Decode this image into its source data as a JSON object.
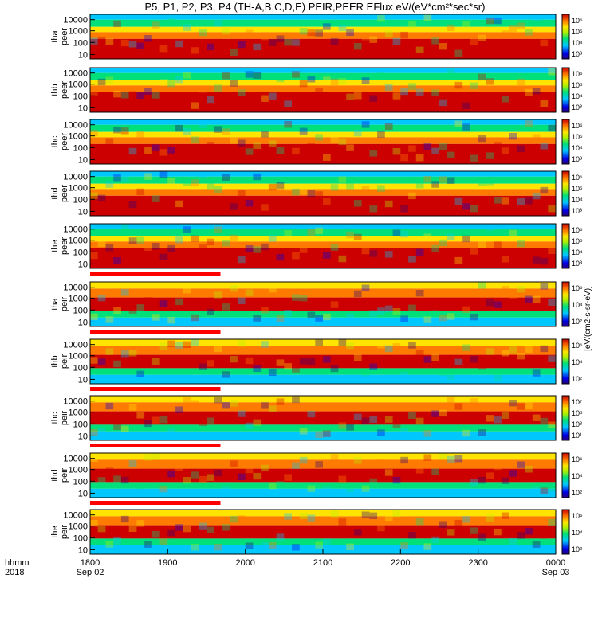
{
  "title": "P5, P1, P2, P3, P4 (TH-A,B,C,D,E) PEIR,PEER EFlux eV/(eV*cm²*sec*sr)",
  "chart_data": {
    "type": "heatmap",
    "x_ticks": [
      {
        "label": "1800",
        "sub": "Sep 02"
      },
      {
        "label": "1900",
        "sub": ""
      },
      {
        "label": "2000",
        "sub": ""
      },
      {
        "label": "2100",
        "sub": ""
      },
      {
        "label": "2200",
        "sub": ""
      },
      {
        "label": "2300",
        "sub": ""
      },
      {
        "label": "0000",
        "sub": "Sep 03"
      }
    ],
    "x_label_top": "hhmm",
    "x_label_bottom": "2018",
    "y_ticks": [
      "10000",
      "1000",
      "100",
      "10"
    ],
    "colorbar_label": "[eV/(cm2-s-sr-eV)]",
    "panels": [
      {
        "line1": "tha",
        "line2": "peer",
        "cbar": [
          "10⁶",
          "10⁵",
          "10⁴",
          "10³"
        ],
        "strip": false
      },
      {
        "line1": "thb",
        "line2": "peer",
        "cbar": [
          "10⁶",
          "10⁵",
          "10⁴",
          "10³"
        ],
        "strip": false
      },
      {
        "line1": "thc",
        "line2": "peer",
        "cbar": [
          "10⁶",
          "10⁵",
          "10⁴",
          "10³"
        ],
        "strip": false
      },
      {
        "line1": "thd",
        "line2": "peer",
        "cbar": [
          "10⁶",
          "10⁵",
          "10⁴",
          "10³"
        ],
        "strip": false
      },
      {
        "line1": "the",
        "line2": "peer",
        "cbar": [
          "10⁶",
          "10⁵",
          "10⁴",
          "10³"
        ],
        "strip": true
      },
      {
        "line1": "tha",
        "line2": "peir",
        "cbar": [
          "10⁶",
          "10⁴",
          "10²"
        ],
        "strip": true
      },
      {
        "line1": "thb",
        "line2": "peir",
        "cbar": [
          "10⁶",
          "10⁴",
          "10²"
        ],
        "strip": true
      },
      {
        "line1": "thc",
        "line2": "peir",
        "cbar": [
          "10⁷",
          "10⁵",
          "10³",
          "10¹"
        ],
        "strip": true
      },
      {
        "line1": "thd",
        "line2": "peir",
        "cbar": [
          "10⁶",
          "10⁴",
          "10²"
        ],
        "strip": true
      },
      {
        "line1": "the",
        "line2": "peir",
        "cbar": [
          "10⁶",
          "10⁴",
          "10²"
        ],
        "strip": false
      }
    ]
  }
}
